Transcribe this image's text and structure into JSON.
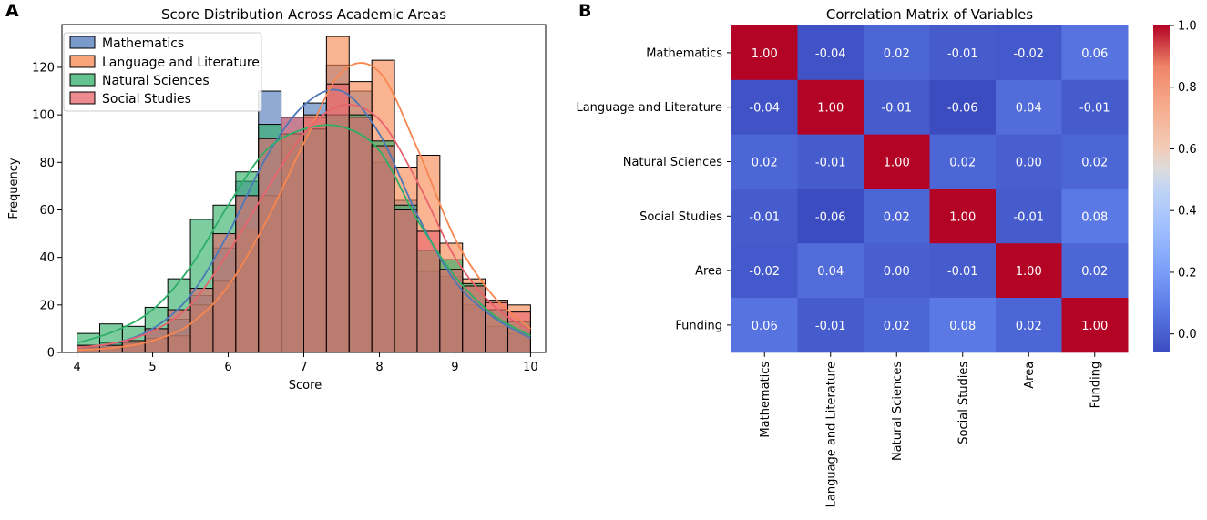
{
  "panels": {
    "left_letter": "A",
    "right_letter": "B"
  },
  "colors": {
    "Mathematics": "#4c78b8",
    "Language and Literature": "#f7864f",
    "Natural Sciences": "#2fae67",
    "Social Studies": "#e8646c",
    "overlap": "#5d6d8d",
    "grid_line": "#000000"
  },
  "chart_data": [
    {
      "type": "bar",
      "subtype": "histogram_with_kde",
      "title": "Score Distribution Across Academic Areas",
      "xlabel": "Score",
      "ylabel": "Frequency",
      "xlim": [
        3.8,
        10.2
      ],
      "ylim": [
        0,
        138
      ],
      "xticks": [
        "4",
        "5",
        "6",
        "7",
        "8",
        "9",
        "10"
      ],
      "yticks": [
        "0",
        "20",
        "40",
        "60",
        "80",
        "100",
        "120"
      ],
      "legend_position": "top-left",
      "bin_edges": [
        4.0,
        4.3,
        4.6,
        4.9,
        5.2,
        5.5,
        5.8,
        6.1,
        6.4,
        6.7,
        7.0,
        7.3,
        7.6,
        7.9,
        8.2,
        8.5,
        8.8,
        9.1,
        9.4,
        9.7,
        10.0
      ],
      "series": [
        {
          "name": "Mathematics",
          "values": [
            3,
            4,
            5,
            10,
            14,
            24,
            44,
            72,
            110,
            99,
            105,
            121,
            110,
            80,
            64,
            34,
            32,
            20,
            11,
            8
          ]
        },
        {
          "name": "Language and Literature",
          "values": [
            2,
            2,
            4,
            6,
            7,
            20,
            30,
            52,
            66,
            92,
            100,
            133,
            114,
            123,
            78,
            83,
            46,
            31,
            22,
            20
          ]
        },
        {
          "name": "Natural Sciences",
          "values": [
            8,
            12,
            11,
            19,
            31,
            56,
            62,
            76,
            96,
            92,
            94,
            100,
            100,
            89,
            62,
            43,
            39,
            29,
            18,
            13
          ]
        },
        {
          "name": "Social Studies",
          "values": [
            3,
            3,
            5,
            10,
            18,
            27,
            50,
            66,
            90,
            99,
            99,
            113,
            99,
            87,
            60,
            51,
            35,
            28,
            21,
            17
          ]
        }
      ],
      "kde": [
        {
          "name": "Mathematics",
          "x": [
            4.0,
            4.5,
            5.0,
            5.5,
            6.0,
            6.5,
            7.0,
            7.5,
            8.0,
            8.5,
            9.0,
            9.5,
            10.0
          ],
          "y": [
            2,
            4,
            10,
            24,
            50,
            82,
            104,
            110,
            92,
            58,
            30,
            15,
            6
          ]
        },
        {
          "name": "Language and Literature",
          "x": [
            4.0,
            4.5,
            5.0,
            5.5,
            6.0,
            6.5,
            7.0,
            7.5,
            8.0,
            8.5,
            9.0,
            9.5,
            10.0
          ],
          "y": [
            1,
            2,
            5,
            12,
            28,
            55,
            88,
            118,
            118,
            86,
            48,
            24,
            10
          ]
        },
        {
          "name": "Natural Sciences",
          "x": [
            4.0,
            4.5,
            5.0,
            5.5,
            6.0,
            6.5,
            7.0,
            7.5,
            8.0,
            8.5,
            9.0,
            9.5,
            10.0
          ],
          "y": [
            4,
            9,
            18,
            36,
            62,
            85,
            94,
            95,
            85,
            56,
            32,
            16,
            7
          ]
        },
        {
          "name": "Social Studies",
          "x": [
            4.0,
            4.5,
            5.0,
            5.5,
            6.0,
            6.5,
            7.0,
            7.5,
            8.0,
            8.5,
            9.0,
            9.5,
            10.0
          ],
          "y": [
            2,
            4,
            9,
            20,
            42,
            68,
            92,
            104,
            98,
            72,
            40,
            20,
            9
          ]
        }
      ]
    },
    {
      "type": "heatmap",
      "title": "Correlation Matrix of Variables",
      "labels": [
        "Mathematics",
        "Language and Literature",
        "Natural Sciences",
        "Social Studies",
        "Area",
        "Funding"
      ],
      "matrix": [
        [
          1.0,
          -0.04,
          0.02,
          -0.01,
          -0.02,
          0.06
        ],
        [
          -0.04,
          1.0,
          -0.01,
          -0.06,
          0.04,
          -0.01
        ],
        [
          0.02,
          -0.01,
          1.0,
          0.02,
          0.0,
          0.02
        ],
        [
          -0.01,
          -0.06,
          0.02,
          1.0,
          -0.01,
          0.08
        ],
        [
          -0.02,
          0.04,
          0.0,
          -0.01,
          1.0,
          0.02
        ],
        [
          0.06,
          -0.01,
          0.02,
          0.08,
          0.02,
          1.0
        ]
      ],
      "cell_text": [
        [
          "1.00",
          "-0.04",
          "0.02",
          "-0.01",
          "-0.02",
          "0.06"
        ],
        [
          "-0.04",
          "1.00",
          "-0.01",
          "-0.06",
          "0.04",
          "-0.01"
        ],
        [
          "0.02",
          "-0.01",
          "1.00",
          "0.02",
          "0.00",
          "0.02"
        ],
        [
          "-0.01",
          "-0.06",
          "0.02",
          "1.00",
          "-0.01",
          "0.08"
        ],
        [
          "-0.02",
          "0.04",
          "0.00",
          "-0.01",
          "1.00",
          "0.02"
        ],
        [
          "0.06",
          "-0.01",
          "0.02",
          "0.08",
          "0.02",
          "1.00"
        ]
      ],
      "colormap": "coolwarm",
      "vmin": -0.06,
      "vmax": 1.0,
      "colorbar_ticks": [
        0.0,
        0.2,
        0.4,
        0.6,
        0.8,
        1.0
      ],
      "colorbar_tick_labels": [
        "0.0",
        "0.2",
        "0.4",
        "0.6",
        "0.8",
        "1.0"
      ]
    }
  ]
}
